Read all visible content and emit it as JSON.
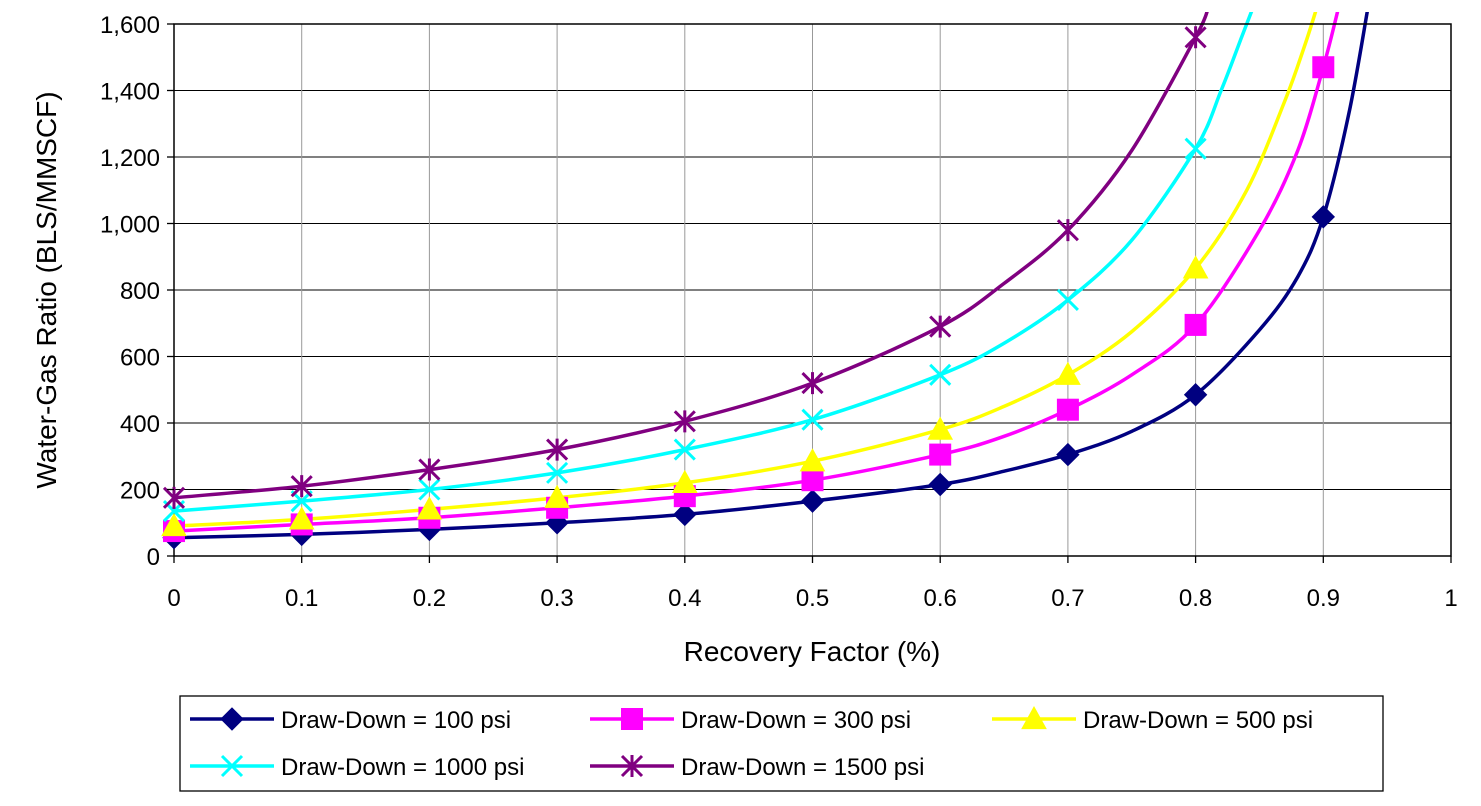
{
  "chart_data": {
    "type": "line",
    "title": "",
    "xlabel": "Recovery Factor (%)",
    "ylabel": "Water-Gas Ratio (BLS/MMSCF)",
    "xlim": [
      0,
      1
    ],
    "ylim": [
      0,
      1600
    ],
    "x_ticks": [
      0,
      0.1,
      0.2,
      0.3,
      0.4,
      0.5,
      0.6,
      0.7,
      0.8,
      0.9,
      1
    ],
    "x_tick_labels": [
      "0",
      "0.1",
      "0.2",
      "0.3",
      "0.4",
      "0.5",
      "0.6",
      "0.7",
      "0.8",
      "0.9",
      "1"
    ],
    "y_ticks": [
      0,
      200,
      400,
      600,
      800,
      1000,
      1200,
      1400,
      1600
    ],
    "y_tick_labels": [
      "0",
      "200",
      "400",
      "600",
      "800",
      "1,000",
      "1,200",
      "1,400",
      "1,600"
    ],
    "grid": {
      "x": true,
      "y": true
    },
    "legend_position": "bottom",
    "series": [
      {
        "name": "Draw-Down = 100 psi",
        "color": "#000080",
        "marker": "diamond",
        "x": [
          0,
          0.1,
          0.2,
          0.3,
          0.4,
          0.5,
          0.6,
          0.7,
          0.8,
          0.9
        ],
        "y": [
          55,
          65,
          80,
          100,
          125,
          165,
          215,
          305,
          485,
          1020
        ],
        "curve_x": [
          0,
          0.1,
          0.2,
          0.3,
          0.4,
          0.5,
          0.6,
          0.65,
          0.7,
          0.75,
          0.8,
          0.85,
          0.88,
          0.9,
          0.92,
          0.935
        ],
        "curve_y": [
          55,
          65,
          80,
          100,
          125,
          165,
          215,
          255,
          305,
          375,
          485,
          680,
          840,
          1020,
          1330,
          1650
        ]
      },
      {
        "name": "Draw-Down = 300 psi",
        "color": "#FF00FF",
        "marker": "square",
        "x": [
          0,
          0.1,
          0.2,
          0.3,
          0.4,
          0.5,
          0.6,
          0.7,
          0.8,
          0.9
        ],
        "y": [
          75,
          95,
          115,
          145,
          180,
          228,
          305,
          440,
          695,
          1470
        ],
        "curve_x": [
          0,
          0.1,
          0.2,
          0.3,
          0.4,
          0.5,
          0.6,
          0.65,
          0.7,
          0.75,
          0.8,
          0.85,
          0.88,
          0.9,
          0.912
        ],
        "curve_y": [
          75,
          95,
          115,
          145,
          180,
          228,
          305,
          360,
          440,
          545,
          695,
          980,
          1220,
          1470,
          1650
        ]
      },
      {
        "name": "Draw-Down = 500 psi",
        "color": "#FFFF00",
        "marker": "triangle",
        "x": [
          0,
          0.1,
          0.2,
          0.3,
          0.4,
          0.5,
          0.6,
          0.7,
          0.8
        ],
        "y": [
          90,
          110,
          140,
          175,
          220,
          285,
          380,
          545,
          865
        ],
        "curve_x": [
          0,
          0.1,
          0.2,
          0.3,
          0.4,
          0.5,
          0.6,
          0.65,
          0.7,
          0.75,
          0.8,
          0.84,
          0.87,
          0.885,
          0.895
        ],
        "curve_y": [
          90,
          110,
          140,
          175,
          220,
          285,
          380,
          450,
          545,
          675,
          865,
          1100,
          1370,
          1530,
          1650
        ]
      },
      {
        "name": "Draw-Down = 1000 psi",
        "color": "#00FFFF",
        "marker": "x",
        "x": [
          0,
          0.1,
          0.2,
          0.3,
          0.4,
          0.5,
          0.6,
          0.7,
          0.8
        ],
        "y": [
          135,
          165,
          200,
          250,
          320,
          410,
          545,
          770,
          1225
        ],
        "curve_x": [
          0,
          0.1,
          0.2,
          0.3,
          0.4,
          0.5,
          0.6,
          0.65,
          0.7,
          0.75,
          0.8,
          0.82,
          0.835,
          0.845
        ],
        "curve_y": [
          135,
          165,
          200,
          250,
          320,
          410,
          545,
          640,
          770,
          950,
          1225,
          1400,
          1550,
          1650
        ]
      },
      {
        "name": "Draw-Down = 1500 psi",
        "color": "#800080",
        "marker": "star",
        "x": [
          0,
          0.1,
          0.2,
          0.3,
          0.4,
          0.5,
          0.6,
          0.7,
          0.8
        ],
        "y": [
          175,
          210,
          260,
          320,
          405,
          520,
          690,
          980,
          1560
        ],
        "curve_x": [
          0,
          0.1,
          0.2,
          0.3,
          0.4,
          0.5,
          0.6,
          0.65,
          0.7,
          0.75,
          0.8,
          0.81
        ],
        "curve_y": [
          175,
          210,
          260,
          320,
          405,
          520,
          690,
          820,
          980,
          1220,
          1560,
          1650
        ]
      }
    ]
  }
}
